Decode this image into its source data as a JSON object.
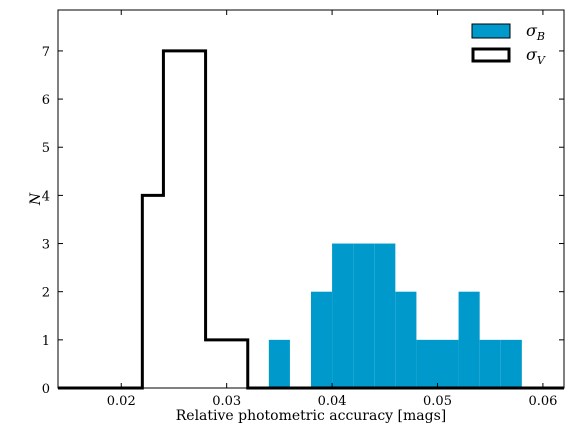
{
  "chart_data": {
    "type": "histogram",
    "xlabel": "Relative photometric accuracy [mags]",
    "ylabel": "N",
    "xlim": [
      0.014,
      0.062
    ],
    "ylim": [
      0,
      7.85
    ],
    "x_ticks": [
      0.02,
      0.03,
      0.04,
      0.05,
      0.06
    ],
    "x_tick_labels": [
      "0.02",
      "0.03",
      "0.04",
      "0.05",
      "0.06"
    ],
    "y_ticks": [
      0,
      1,
      2,
      3,
      4,
      5,
      6,
      7
    ],
    "y_tick_labels": [
      "0",
      "1",
      "2",
      "3",
      "4",
      "5",
      "6",
      "7"
    ],
    "grid": false,
    "legend_position": "top-right",
    "bin_edges": [
      0.014,
      0.016,
      0.018,
      0.02,
      0.022,
      0.024,
      0.026,
      0.028,
      0.03,
      0.032,
      0.034,
      0.036,
      0.038,
      0.04,
      0.042,
      0.044,
      0.046,
      0.048,
      0.05,
      0.052,
      0.054,
      0.056,
      0.058,
      0.06,
      0.062
    ],
    "series": [
      {
        "name": "σ_B",
        "legend_main": "σ",
        "legend_sub": "B",
        "style": "filled",
        "color": "#0099cc",
        "counts": [
          0,
          0,
          0,
          0,
          0,
          0,
          0,
          0,
          0,
          0,
          1,
          0,
          2,
          3,
          3,
          3,
          2,
          1,
          1,
          2,
          1,
          1,
          0,
          0
        ]
      },
      {
        "name": "σ_V",
        "legend_main": "σ",
        "legend_sub": "V",
        "style": "step",
        "color": "#000000",
        "counts": [
          0,
          0,
          0,
          0,
          4,
          7,
          7,
          1,
          1,
          0,
          0,
          0,
          0,
          0,
          0,
          0,
          0,
          0,
          0,
          0,
          0,
          0,
          0,
          0
        ]
      }
    ]
  }
}
